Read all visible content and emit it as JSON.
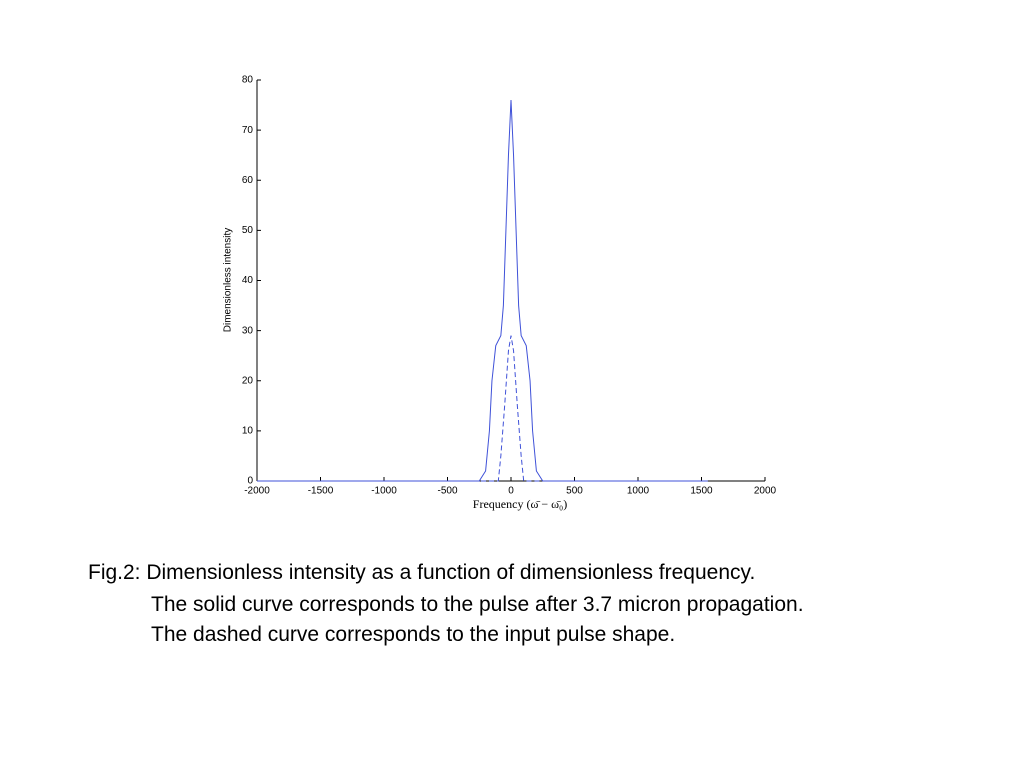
{
  "chart_data": {
    "type": "line",
    "xlabel": "Frequency (ω̄ − ω̄₀)",
    "ylabel": "Dimensionless intensity",
    "xlim": [
      -2000,
      2000
    ],
    "xticks": [
      -2000,
      -1500,
      -1000,
      -500,
      0,
      500,
      1000,
      1500,
      2000
    ],
    "ylim": [
      0,
      80
    ],
    "yticks": [
      0,
      10,
      20,
      30,
      40,
      50,
      60,
      70,
      80
    ],
    "grid": false,
    "series": [
      {
        "name": "solid",
        "color": "#3f51d8",
        "dash": false,
        "x": [
          -2000,
          -250,
          -200,
          -170,
          -150,
          -120,
          -80,
          -60,
          -40,
          -20,
          0,
          20,
          40,
          60,
          80,
          120,
          150,
          170,
          200,
          250,
          1550
        ],
        "values": [
          0,
          0,
          2,
          10,
          20,
          27,
          29,
          35,
          50,
          65,
          76,
          65,
          50,
          35,
          29,
          27,
          20,
          10,
          2,
          0,
          0
        ]
      },
      {
        "name": "dashed",
        "color": "#3f51d8",
        "dash": true,
        "x": [
          -2000,
          -100,
          -80,
          -50,
          -20,
          0,
          20,
          50,
          80,
          100,
          1550
        ],
        "values": [
          0,
          0,
          5,
          15,
          26,
          29,
          26,
          15,
          5,
          0,
          0
        ]
      }
    ]
  },
  "caption": [
    "Fig.2: Dimensionless intensity as a function of dimensionless frequency.",
    "The solid curve corresponds to the pulse after 3.7 micron propagation.",
    "The dashed curve corresponds to the input pulse shape."
  ]
}
